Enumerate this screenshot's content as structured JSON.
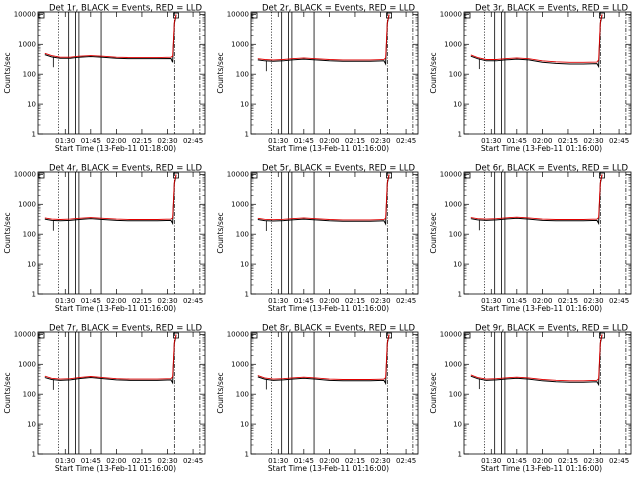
{
  "figure": {
    "ylabel": "Counts/sec",
    "colors": {
      "events": "#000000",
      "lld": "#e00000",
      "axes": "#000000",
      "background": "#ffffff"
    }
  },
  "chart_data": [
    {
      "type": "line",
      "title": "Det 1r, BLACK = Events, RED = LLD",
      "xlabel": "Start Time (13-Feb-11 01:18:00)",
      "ylabel": "Counts/sec",
      "x_ticks": [
        "01:30",
        "01:45",
        "02:00",
        "02:15",
        "02:30",
        "02:45"
      ],
      "y_ticks": [
        "1",
        "10",
        "100",
        "1000",
        "10000"
      ],
      "yscale": "log",
      "ylim": [
        1,
        12000
      ],
      "series": [
        {
          "name": "Events",
          "color": "#000000",
          "x": [
            "01:18",
            "01:22",
            "01:27",
            "01:33",
            "01:38",
            "01:45",
            "01:52",
            "02:00",
            "02:08",
            "02:16",
            "02:24",
            "02:32",
            "02:33",
            "02:34",
            "02:35"
          ],
          "values": [
            450,
            380,
            340,
            340,
            370,
            390,
            370,
            340,
            330,
            330,
            330,
            335,
            250,
            5000,
            9500
          ]
        },
        {
          "name": "LLD",
          "color": "#e00000",
          "x": [
            "01:18",
            "01:22",
            "01:27",
            "01:33",
            "01:38",
            "01:45",
            "01:52",
            "02:00",
            "02:08",
            "02:16",
            "02:24",
            "02:32",
            "02:33",
            "02:34",
            "02:35"
          ],
          "values": [
            500,
            420,
            370,
            370,
            400,
            420,
            400,
            370,
            360,
            360,
            360,
            370,
            400,
            5500,
            10000
          ]
        }
      ]
    },
    {
      "type": "line",
      "title": "Det 2r, BLACK = Events, RED = LLD",
      "xlabel": "Start Time (13-Feb-11 01:16:00)",
      "ylabel": "Counts/sec",
      "x_ticks": [
        "01:30",
        "01:45",
        "02:00",
        "02:15",
        "02:30",
        "02:45"
      ],
      "y_ticks": [
        "1",
        "10",
        "100",
        "1000",
        "10000"
      ],
      "yscale": "log",
      "ylim": [
        1,
        12000
      ],
      "series": [
        {
          "name": "Events",
          "color": "#000000",
          "x": [
            "01:18",
            "01:22",
            "01:27",
            "01:33",
            "01:38",
            "01:45",
            "01:52",
            "02:00",
            "02:08",
            "02:16",
            "02:24",
            "02:32",
            "02:33",
            "02:34",
            "02:35"
          ],
          "values": [
            300,
            280,
            270,
            280,
            300,
            320,
            300,
            280,
            270,
            270,
            270,
            280,
            220,
            5000,
            9500
          ]
        },
        {
          "name": "LLD",
          "color": "#e00000",
          "x": [
            "01:18",
            "01:22",
            "01:27",
            "01:33",
            "01:38",
            "01:45",
            "01:52",
            "02:00",
            "02:08",
            "02:16",
            "02:24",
            "02:32",
            "02:33",
            "02:34",
            "02:35"
          ],
          "values": [
            330,
            310,
            300,
            310,
            330,
            350,
            330,
            310,
            300,
            300,
            300,
            310,
            350,
            5500,
            10000
          ]
        }
      ]
    },
    {
      "type": "line",
      "title": "Det 3r, BLACK = Events, RED = LLD",
      "xlabel": "Start Time (13-Feb-11 01:16:00)",
      "ylabel": "Counts/sec",
      "x_ticks": [
        "01:30",
        "01:45",
        "02:00",
        "02:15",
        "02:30",
        "02:45"
      ],
      "y_ticks": [
        "1",
        "10",
        "100",
        "1000",
        "10000"
      ],
      "yscale": "log",
      "ylim": [
        1,
        12000
      ],
      "series": [
        {
          "name": "Events",
          "color": "#000000",
          "x": [
            "01:18",
            "01:22",
            "01:27",
            "01:33",
            "01:38",
            "01:45",
            "01:52",
            "02:00",
            "02:08",
            "02:16",
            "02:24",
            "02:32",
            "02:33",
            "02:34",
            "02:35"
          ],
          "values": [
            400,
            330,
            280,
            280,
            300,
            320,
            300,
            250,
            230,
            220,
            220,
            225,
            180,
            5000,
            9500
          ]
        },
        {
          "name": "LLD",
          "color": "#e00000",
          "x": [
            "01:18",
            "01:22",
            "01:27",
            "01:33",
            "01:38",
            "01:45",
            "01:52",
            "02:00",
            "02:08",
            "02:16",
            "02:24",
            "02:32",
            "02:33",
            "02:34",
            "02:35"
          ],
          "values": [
            440,
            360,
            310,
            310,
            330,
            350,
            330,
            280,
            260,
            250,
            250,
            255,
            300,
            5500,
            10000
          ]
        }
      ]
    },
    {
      "type": "line",
      "title": "Det 4r, BLACK = Events, RED = LLD",
      "xlabel": "Start Time (13-Feb-11 01:16:00)",
      "ylabel": "Counts/sec",
      "x_ticks": [
        "01:30",
        "01:45",
        "02:00",
        "02:15",
        "02:30",
        "02:45"
      ],
      "y_ticks": [
        "1",
        "10",
        "100",
        "1000",
        "10000"
      ],
      "yscale": "log",
      "ylim": [
        1,
        12000
      ],
      "series": [
        {
          "name": "Events",
          "color": "#000000",
          "x": [
            "01:18",
            "01:22",
            "01:27",
            "01:33",
            "01:38",
            "01:45",
            "01:52",
            "02:00",
            "02:08",
            "02:16",
            "02:24",
            "02:32",
            "02:33",
            "02:34",
            "02:35"
          ],
          "values": [
            320,
            290,
            280,
            290,
            310,
            330,
            310,
            290,
            280,
            280,
            280,
            290,
            230,
            5000,
            9500
          ]
        },
        {
          "name": "LLD",
          "color": "#e00000",
          "x": [
            "01:18",
            "01:22",
            "01:27",
            "01:33",
            "01:38",
            "01:45",
            "01:52",
            "02:00",
            "02:08",
            "02:16",
            "02:24",
            "02:32",
            "02:33",
            "02:34",
            "02:35"
          ],
          "values": [
            350,
            320,
            310,
            320,
            340,
            360,
            340,
            320,
            310,
            310,
            310,
            320,
            350,
            5500,
            10000
          ]
        }
      ]
    },
    {
      "type": "line",
      "title": "Det 5r, BLACK = Events, RED = LLD",
      "xlabel": "Start Time (13-Feb-11 01:16:00)",
      "ylabel": "Counts/sec",
      "x_ticks": [
        "01:30",
        "01:45",
        "02:00",
        "02:15",
        "02:30",
        "02:45"
      ],
      "y_ticks": [
        "1",
        "10",
        "100",
        "1000",
        "10000"
      ],
      "yscale": "log",
      "ylim": [
        1,
        12000
      ],
      "series": [
        {
          "name": "Events",
          "color": "#000000",
          "x": [
            "01:18",
            "01:22",
            "01:27",
            "01:33",
            "01:38",
            "01:45",
            "01:52",
            "02:00",
            "02:08",
            "02:16",
            "02:24",
            "02:32",
            "02:33",
            "02:34",
            "02:35"
          ],
          "values": [
            310,
            285,
            275,
            285,
            300,
            320,
            300,
            280,
            270,
            270,
            270,
            280,
            220,
            5000,
            9500
          ]
        },
        {
          "name": "LLD",
          "color": "#e00000",
          "x": [
            "01:18",
            "01:22",
            "01:27",
            "01:33",
            "01:38",
            "01:45",
            "01:52",
            "02:00",
            "02:08",
            "02:16",
            "02:24",
            "02:32",
            "02:33",
            "02:34",
            "02:35"
          ],
          "values": [
            340,
            315,
            305,
            315,
            330,
            350,
            330,
            310,
            300,
            300,
            300,
            310,
            340,
            5500,
            10000
          ]
        }
      ]
    },
    {
      "type": "line",
      "title": "Det 6r, BLACK = Events, RED = LLD",
      "xlabel": "Start Time (13-Feb-11 01:16:00)",
      "ylabel": "Counts/sec",
      "x_ticks": [
        "01:30",
        "01:45",
        "02:00",
        "02:15",
        "02:30",
        "02:45"
      ],
      "y_ticks": [
        "1",
        "10",
        "100",
        "1000",
        "10000"
      ],
      "yscale": "log",
      "ylim": [
        1,
        12000
      ],
      "series": [
        {
          "name": "Events",
          "color": "#000000",
          "x": [
            "01:18",
            "01:22",
            "01:27",
            "01:33",
            "01:38",
            "01:45",
            "01:52",
            "02:00",
            "02:08",
            "02:16",
            "02:24",
            "02:32",
            "02:33",
            "02:34",
            "02:35"
          ],
          "values": [
            330,
            300,
            290,
            300,
            320,
            340,
            320,
            290,
            280,
            280,
            280,
            290,
            230,
            5000,
            9500
          ]
        },
        {
          "name": "LLD",
          "color": "#e00000",
          "x": [
            "01:18",
            "01:22",
            "01:27",
            "01:33",
            "01:38",
            "01:45",
            "01:52",
            "02:00",
            "02:08",
            "02:16",
            "02:24",
            "02:32",
            "02:33",
            "02:34",
            "02:35"
          ],
          "values": [
            360,
            330,
            320,
            330,
            350,
            370,
            350,
            320,
            310,
            310,
            310,
            320,
            360,
            5500,
            10000
          ]
        }
      ]
    },
    {
      "type": "line",
      "title": "Det 7r, BLACK = Events, RED = LLD",
      "xlabel": "Start Time (13-Feb-11 01:16:00)",
      "ylabel": "Counts/sec",
      "x_ticks": [
        "01:30",
        "01:45",
        "02:00",
        "02:15",
        "02:30",
        "02:45"
      ],
      "y_ticks": [
        "1",
        "10",
        "100",
        "1000",
        "10000"
      ],
      "yscale": "log",
      "ylim": [
        1,
        12000
      ],
      "series": [
        {
          "name": "Events",
          "color": "#000000",
          "x": [
            "01:18",
            "01:22",
            "01:27",
            "01:33",
            "01:38",
            "01:45",
            "01:52",
            "02:00",
            "02:08",
            "02:16",
            "02:24",
            "02:32",
            "02:33",
            "02:34",
            "02:35"
          ],
          "values": [
            360,
            310,
            290,
            300,
            330,
            360,
            330,
            300,
            290,
            290,
            290,
            300,
            240,
            5000,
            9500
          ]
        },
        {
          "name": "LLD",
          "color": "#e00000",
          "x": [
            "01:18",
            "01:22",
            "01:27",
            "01:33",
            "01:38",
            "01:45",
            "01:52",
            "02:00",
            "02:08",
            "02:16",
            "02:24",
            "02:32",
            "02:33",
            "02:34",
            "02:35"
          ],
          "values": [
            400,
            340,
            320,
            330,
            360,
            390,
            360,
            330,
            320,
            320,
            320,
            330,
            380,
            5500,
            10000
          ]
        }
      ]
    },
    {
      "type": "line",
      "title": "Det 8r, BLACK = Events, RED = LLD",
      "xlabel": "Start Time (13-Feb-11 01:16:00)",
      "ylabel": "Counts/sec",
      "x_ticks": [
        "01:30",
        "01:45",
        "02:00",
        "02:15",
        "02:30",
        "02:45"
      ],
      "y_ticks": [
        "1",
        "10",
        "100",
        "1000",
        "10000"
      ],
      "yscale": "log",
      "ylim": [
        1,
        12000
      ],
      "series": [
        {
          "name": "Events",
          "color": "#000000",
          "x": [
            "01:18",
            "01:22",
            "01:27",
            "01:33",
            "01:38",
            "01:45",
            "01:52",
            "02:00",
            "02:08",
            "02:16",
            "02:24",
            "02:32",
            "02:33",
            "02:34",
            "02:35"
          ],
          "values": [
            380,
            320,
            290,
            300,
            320,
            340,
            320,
            290,
            280,
            280,
            280,
            290,
            230,
            5000,
            9500
          ]
        },
        {
          "name": "LLD",
          "color": "#e00000",
          "x": [
            "01:18",
            "01:22",
            "01:27",
            "01:33",
            "01:38",
            "01:45",
            "01:52",
            "02:00",
            "02:08",
            "02:16",
            "02:24",
            "02:32",
            "02:33",
            "02:34",
            "02:35"
          ],
          "values": [
            420,
            350,
            320,
            330,
            350,
            370,
            350,
            320,
            310,
            310,
            310,
            320,
            360,
            5500,
            10000
          ]
        }
      ]
    },
    {
      "type": "line",
      "title": "Det 9r, BLACK = Events, RED = LLD",
      "xlabel": "Start Time (13-Feb-11 01:16:00)",
      "ylabel": "Counts/sec",
      "x_ticks": [
        "01:30",
        "01:45",
        "02:00",
        "02:15",
        "02:30",
        "02:45"
      ],
      "y_ticks": [
        "1",
        "10",
        "100",
        "1000",
        "10000"
      ],
      "yscale": "log",
      "ylim": [
        1,
        12000
      ],
      "series": [
        {
          "name": "Events",
          "color": "#000000",
          "x": [
            "01:18",
            "01:22",
            "01:27",
            "01:33",
            "01:38",
            "01:45",
            "01:52",
            "02:00",
            "02:08",
            "02:16",
            "02:24",
            "02:32",
            "02:33",
            "02:34",
            "02:35"
          ],
          "values": [
            400,
            330,
            290,
            300,
            320,
            340,
            320,
            280,
            260,
            250,
            250,
            260,
            210,
            5000,
            9500
          ]
        },
        {
          "name": "LLD",
          "color": "#e00000",
          "x": [
            "01:18",
            "01:22",
            "01:27",
            "01:33",
            "01:38",
            "01:45",
            "01:52",
            "02:00",
            "02:08",
            "02:16",
            "02:24",
            "02:32",
            "02:33",
            "02:34",
            "02:35"
          ],
          "values": [
            440,
            360,
            320,
            330,
            350,
            370,
            350,
            310,
            290,
            280,
            280,
            290,
            330,
            5500,
            10000
          ]
        }
      ]
    }
  ]
}
